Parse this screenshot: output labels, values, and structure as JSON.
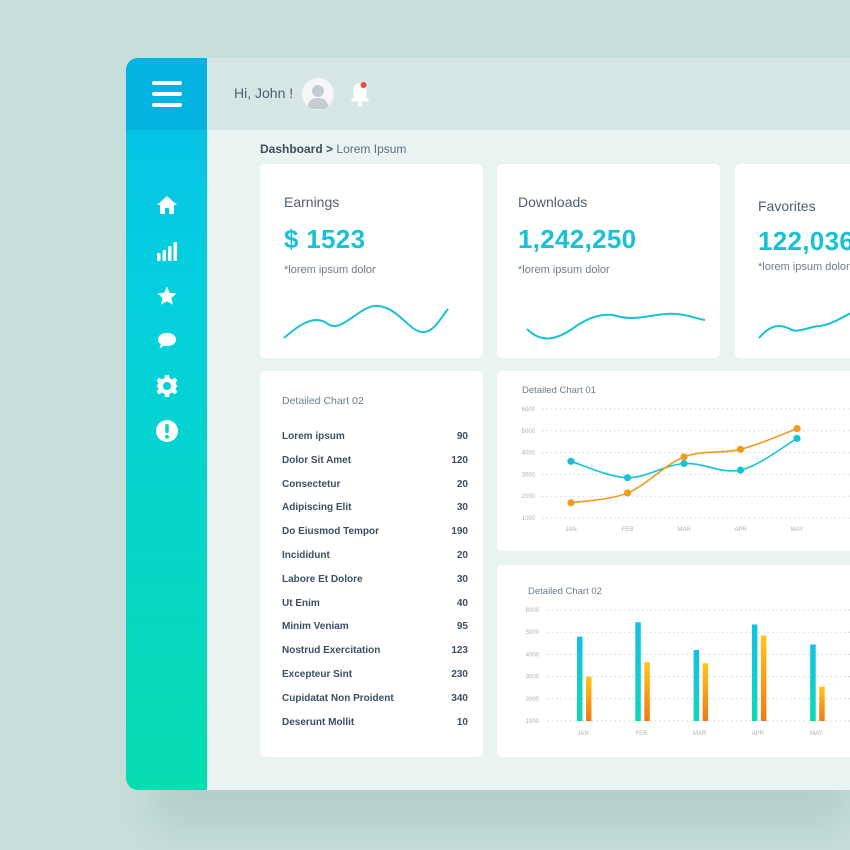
{
  "header": {
    "greeting": "Hi, John !"
  },
  "breadcrumb": {
    "root": "Dashboard",
    "separator": ">",
    "current": "Lorem Ipsum"
  },
  "sidebar": {
    "items": [
      {
        "name": "home-icon"
      },
      {
        "name": "bar-chart-icon"
      },
      {
        "name": "star-icon"
      },
      {
        "name": "chat-icon"
      },
      {
        "name": "gear-icon"
      },
      {
        "name": "alert-icon"
      }
    ]
  },
  "stats": [
    {
      "title": "Earnings",
      "value": "$ 1523",
      "note": "*lorem ipsum dolor"
    },
    {
      "title": "Downloads",
      "value": "1,242,250",
      "note": "*lorem ipsum dolor"
    },
    {
      "title": "Favorites",
      "value": "122,036",
      "note": "*lorem ipsum dolor"
    }
  ],
  "list_card": {
    "title": "Detailed Chart 02",
    "rows": [
      {
        "label": "Lorem ipsum",
        "value": "90"
      },
      {
        "label": "Dolor Sit Amet",
        "value": "120"
      },
      {
        "label": "Consectetur",
        "value": "20"
      },
      {
        "label": "Adipiscing Elit",
        "value": "30"
      },
      {
        "label": "Do Eiusmod Tempor",
        "value": "190"
      },
      {
        "label": "Incididunt",
        "value": "20"
      },
      {
        "label": "Labore Et Dolore",
        "value": "30"
      },
      {
        "label": "Ut Enim",
        "value": "40"
      },
      {
        "label": "Minim Veniam",
        "value": "95"
      },
      {
        "label": "Nostrud Exercitation",
        "value": "123"
      },
      {
        "label": "Excepteur Sint",
        "value": "230"
      },
      {
        "label": "Cupidatat Non Proident",
        "value": "340"
      },
      {
        "label": "Deserunt Mollit",
        "value": "10"
      }
    ]
  },
  "colors": {
    "teal": "#17c2d6",
    "orange": "#f29a1a",
    "cyan_bar": "#17c7dd",
    "sidebar_top": "#06bde8",
    "sidebar_bottom": "#06ddb0"
  },
  "chart_data": [
    {
      "type": "line",
      "title": "Detailed Chart 01",
      "categories": [
        "JAN",
        "FEB",
        "MAR",
        "APR",
        "MAY"
      ],
      "yticks": [
        1000,
        2000,
        3000,
        4000,
        5000,
        6000
      ],
      "ylim": [
        1000,
        6000
      ],
      "grid": true,
      "series": [
        {
          "color": "#17c2d6",
          "values": [
            3600,
            2850,
            3500,
            3200,
            4650
          ]
        },
        {
          "color": "#f29a1a",
          "values": [
            1700,
            2150,
            3800,
            4150,
            5100
          ]
        }
      ]
    },
    {
      "type": "bar",
      "title": "Detailed Chart 02",
      "categories": [
        "JAN",
        "FEB",
        "MAR",
        "APR",
        "MAY"
      ],
      "yticks": [
        1000,
        2000,
        3000,
        4000,
        5000,
        6000
      ],
      "ylim": [
        1000,
        6000
      ],
      "grid": true,
      "series": [
        {
          "color": "#17c7dd",
          "values": [
            4800,
            5450,
            4200,
            5350,
            4450
          ]
        },
        {
          "color": "#f5a623",
          "values": [
            3000,
            3650,
            3600,
            4850,
            2550
          ]
        }
      ]
    }
  ]
}
